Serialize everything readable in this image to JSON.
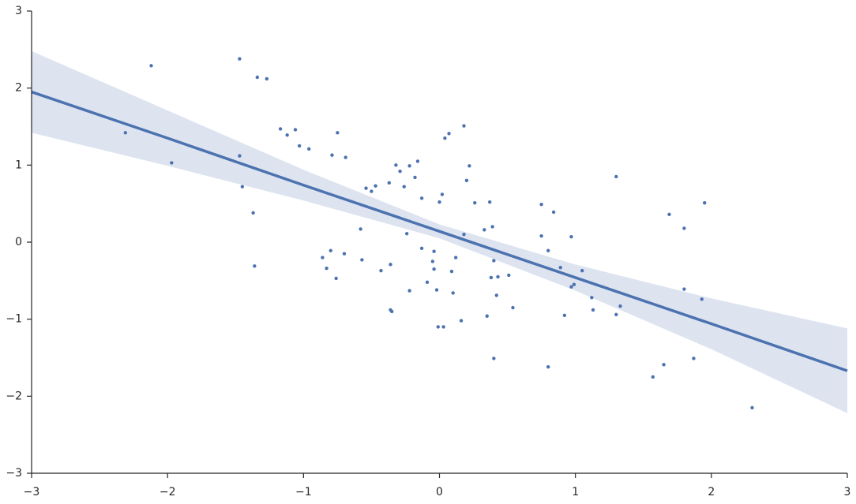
{
  "chart_data": {
    "type": "scatter",
    "color": "#4c72b0",
    "band_color": "#dde4f0",
    "xlim": [
      -3,
      3
    ],
    "ylim": [
      -3,
      3
    ],
    "xticks": [
      {
        "value": -3,
        "label": "−3"
      },
      {
        "value": -2,
        "label": "−2"
      },
      {
        "value": -1,
        "label": "−1"
      },
      0,
      1,
      2,
      3
    ],
    "yticks": [
      {
        "value": -3,
        "label": "−3"
      },
      {
        "value": -2,
        "label": "−2"
      },
      {
        "value": -1,
        "label": "−1"
      },
      0,
      1,
      2,
      3
    ],
    "x": [
      -2.31,
      -2.12,
      -1.97,
      -1.47,
      -1.47,
      -1.45,
      -1.34,
      -1.27,
      -1.37,
      -1.36,
      -1.17,
      -1.12,
      -1.06,
      -1.03,
      -0.96,
      -0.79,
      -0.75,
      -0.69,
      -0.86,
      -0.83,
      -0.8,
      -0.76,
      -0.7,
      -0.58,
      -0.57,
      -0.54,
      -0.5,
      -0.47,
      -0.43,
      -0.37,
      -0.36,
      -0.36,
      -0.35,
      -0.32,
      -0.29,
      -0.26,
      -0.24,
      -0.22,
      -0.22,
      -0.18,
      -0.16,
      -0.13,
      -0.13,
      -0.09,
      -0.05,
      -0.04,
      -0.04,
      -0.02,
      -0.01,
      0.0,
      0.02,
      0.03,
      0.04,
      0.07,
      0.09,
      0.1,
      0.12,
      0.16,
      0.18,
      0.18,
      0.2,
      0.22,
      0.26,
      0.33,
      0.35,
      0.37,
      0.38,
      0.39,
      0.4,
      0.4,
      0.42,
      0.43,
      0.51,
      0.54,
      0.75,
      0.75,
      0.8,
      0.8,
      0.84,
      0.89,
      0.92,
      0.97,
      0.97,
      0.99,
      1.05,
      1.12,
      1.13,
      1.3,
      1.3,
      1.33,
      1.57,
      1.65,
      1.69,
      1.8,
      1.8,
      1.87,
      1.93,
      1.95,
      2.3
    ],
    "values": [
      1.42,
      2.29,
      1.03,
      2.38,
      1.12,
      0.72,
      2.14,
      2.12,
      0.38,
      -0.31,
      1.47,
      1.39,
      1.46,
      1.25,
      1.21,
      1.13,
      1.42,
      1.1,
      -0.2,
      -0.34,
      -0.11,
      -0.47,
      -0.15,
      0.17,
      -0.23,
      0.7,
      0.66,
      0.73,
      -0.37,
      0.77,
      -0.29,
      -0.88,
      -0.9,
      1.0,
      0.92,
      0.72,
      0.11,
      0.99,
      -0.63,
      0.84,
      1.05,
      0.57,
      -0.08,
      -0.52,
      -0.25,
      -0.12,
      -0.35,
      -0.62,
      -1.1,
      0.52,
      0.62,
      -1.1,
      1.35,
      1.41,
      -0.38,
      -0.66,
      -0.2,
      -1.02,
      1.51,
      0.1,
      0.8,
      0.99,
      0.51,
      0.16,
      -0.96,
      0.52,
      -0.46,
      0.2,
      -0.24,
      -1.51,
      -0.69,
      -0.45,
      -0.43,
      -0.85,
      0.49,
      0.08,
      -0.11,
      -1.62,
      0.39,
      -0.33,
      -0.95,
      0.07,
      -0.58,
      -0.55,
      -0.37,
      -0.72,
      -0.88,
      0.85,
      -0.94,
      -0.83,
      -1.75,
      -1.59,
      0.36,
      0.18,
      -0.61,
      -1.51,
      -0.74,
      0.51,
      -2.15
    ],
    "regression": {
      "x": [
        -3,
        -2,
        -1,
        0,
        1,
        2,
        3
      ],
      "y": [
        1.95,
        1.35,
        0.74,
        0.14,
        -0.46,
        -1.06,
        -1.67
      ],
      "upper": [
        2.48,
        1.71,
        0.94,
        0.23,
        -0.29,
        -0.73,
        -1.12
      ],
      "lower": [
        1.42,
        0.99,
        0.54,
        0.05,
        -0.63,
        -1.39,
        -2.22
      ]
    }
  }
}
